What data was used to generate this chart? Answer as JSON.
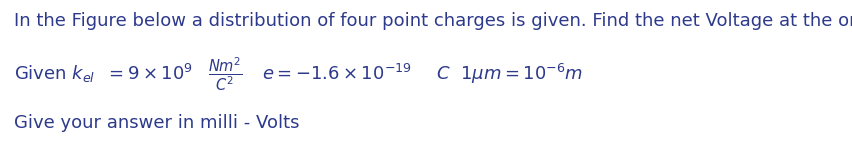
{
  "background_color": "#ffffff",
  "text_color": "#2d3a8c",
  "line1": "In the Figure below a distribution of four point charges is given. Find the net Voltage at the origin.",
  "line3": "Give your answer in milli - Volts",
  "fig_width": 8.52,
  "fig_height": 1.5,
  "dpi": 100,
  "font_size_main": 13.0,
  "font_size_formula": 13.0
}
